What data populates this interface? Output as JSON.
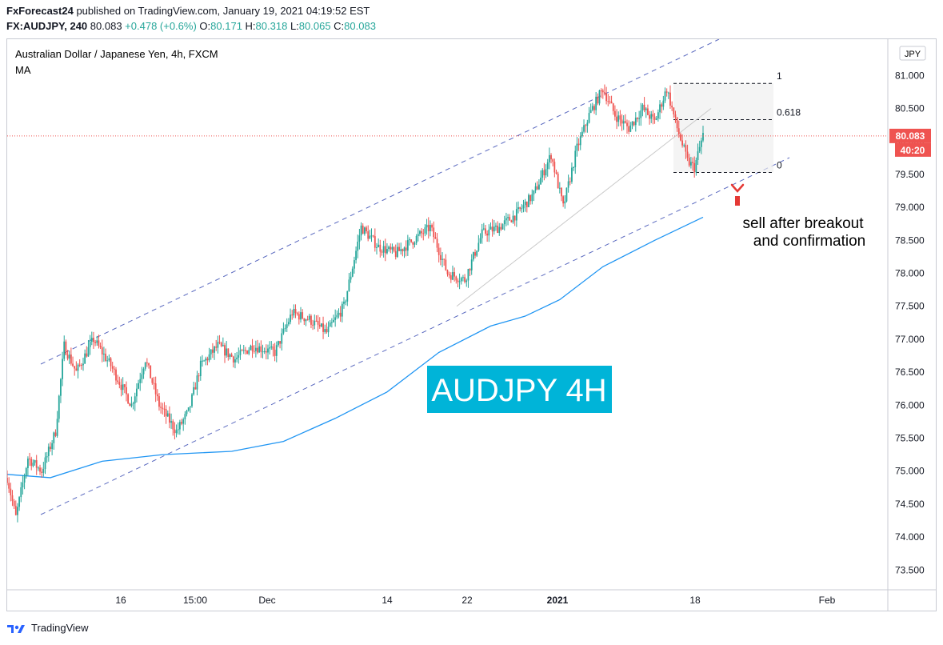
{
  "header": {
    "publisher": "FxForecast24",
    "published_text": "published on TradingView.com, January 19, 2021 04:19:52 EST",
    "symbol": "FX:AUDJPY, 240",
    "last": "80.083",
    "change": "+0.478 (+0.6%)",
    "o_label": "O:",
    "o": "80.171",
    "h_label": "H:",
    "h": "80.318",
    "l_label": "L:",
    "l": "80.065",
    "c_label": "C:",
    "c": "80.083"
  },
  "footer": {
    "brand": "TradingView"
  },
  "colors": {
    "up": "#26a69a",
    "down": "#ef5350",
    "ma": "#2196f3",
    "channel": "#5c6bc0",
    "price_label": "#ef5350",
    "overlay_label": "#00b4d8",
    "arrow": "#e53935"
  },
  "chart_data": {
    "type": "candlestick",
    "title": "Australian Dollar / Japanese Yen, 4h, FXCM",
    "indicator": "MA",
    "currency": "JPY",
    "overlay_text": "AUDJPY 4H",
    "annotation": [
      "sell after breakout",
      "and confirmation"
    ],
    "y_axis": {
      "range": [
        73.2,
        81.55
      ],
      "ticks": [
        "73.500",
        "74.000",
        "74.500",
        "75.000",
        "75.500",
        "76.000",
        "76.500",
        "77.000",
        "77.500",
        "78.000",
        "78.500",
        "79.000",
        "79.500",
        "80.000",
        "80.500",
        "81.000"
      ]
    },
    "x_axis": {
      "ticks": [
        "16",
        "15:00",
        "Dec",
        "14",
        "22",
        "2021",
        "18",
        "Feb"
      ]
    },
    "price_label": "80.083",
    "countdown_label": "40:20",
    "fib_levels": [
      {
        "label": "1",
        "value": 80.88
      },
      {
        "label": "0.618",
        "value": 80.33
      },
      {
        "label": "0",
        "value": 79.53
      }
    ],
    "price_path": [
      {
        "t": 0,
        "p": 74.9
      },
      {
        "t": 5,
        "p": 74.3
      },
      {
        "t": 12,
        "p": 75.2
      },
      {
        "t": 20,
        "p": 75.0
      },
      {
        "t": 28,
        "p": 75.6
      },
      {
        "t": 33,
        "p": 76.9
      },
      {
        "t": 40,
        "p": 76.5
      },
      {
        "t": 50,
        "p": 77.0
      },
      {
        "t": 60,
        "p": 76.6
      },
      {
        "t": 72,
        "p": 76.0
      },
      {
        "t": 80,
        "p": 76.7
      },
      {
        "t": 88,
        "p": 76.0
      },
      {
        "t": 98,
        "p": 75.6
      },
      {
        "t": 105,
        "p": 75.9
      },
      {
        "t": 112,
        "p": 76.6
      },
      {
        "t": 122,
        "p": 76.9
      },
      {
        "t": 132,
        "p": 76.7
      },
      {
        "t": 142,
        "p": 76.9
      },
      {
        "t": 155,
        "p": 76.8
      },
      {
        "t": 165,
        "p": 77.4
      },
      {
        "t": 175,
        "p": 77.3
      },
      {
        "t": 185,
        "p": 77.1
      },
      {
        "t": 195,
        "p": 77.5
      },
      {
        "t": 205,
        "p": 78.7
      },
      {
        "t": 215,
        "p": 78.4
      },
      {
        "t": 225,
        "p": 78.3
      },
      {
        "t": 235,
        "p": 78.5
      },
      {
        "t": 245,
        "p": 78.7
      },
      {
        "t": 255,
        "p": 78.0
      },
      {
        "t": 265,
        "p": 77.9
      },
      {
        "t": 275,
        "p": 78.6
      },
      {
        "t": 285,
        "p": 78.7
      },
      {
        "t": 295,
        "p": 78.9
      },
      {
        "t": 305,
        "p": 79.2
      },
      {
        "t": 315,
        "p": 79.8
      },
      {
        "t": 322,
        "p": 79.0
      },
      {
        "t": 330,
        "p": 79.9
      },
      {
        "t": 337,
        "p": 80.4
      },
      {
        "t": 345,
        "p": 80.8
      },
      {
        "t": 352,
        "p": 80.4
      },
      {
        "t": 360,
        "p": 80.2
      },
      {
        "t": 368,
        "p": 80.5
      },
      {
        "t": 375,
        "p": 80.3
      },
      {
        "t": 382,
        "p": 80.8
      },
      {
        "t": 388,
        "p": 80.2
      },
      {
        "t": 394,
        "p": 79.7
      },
      {
        "t": 398,
        "p": 79.6
      },
      {
        "t": 403,
        "p": 80.1
      }
    ],
    "ma_path": [
      {
        "t": 0,
        "p": 74.95
      },
      {
        "t": 25,
        "p": 74.9
      },
      {
        "t": 55,
        "p": 75.15
      },
      {
        "t": 90,
        "p": 75.25
      },
      {
        "t": 130,
        "p": 75.3
      },
      {
        "t": 160,
        "p": 75.45
      },
      {
        "t": 190,
        "p": 75.8
      },
      {
        "t": 220,
        "p": 76.2
      },
      {
        "t": 250,
        "p": 76.8
      },
      {
        "t": 280,
        "p": 77.2
      },
      {
        "t": 300,
        "p": 77.35
      },
      {
        "t": 320,
        "p": 77.6
      },
      {
        "t": 345,
        "p": 78.1
      },
      {
        "t": 375,
        "p": 78.5
      },
      {
        "t": 403,
        "p": 78.85
      }
    ]
  }
}
